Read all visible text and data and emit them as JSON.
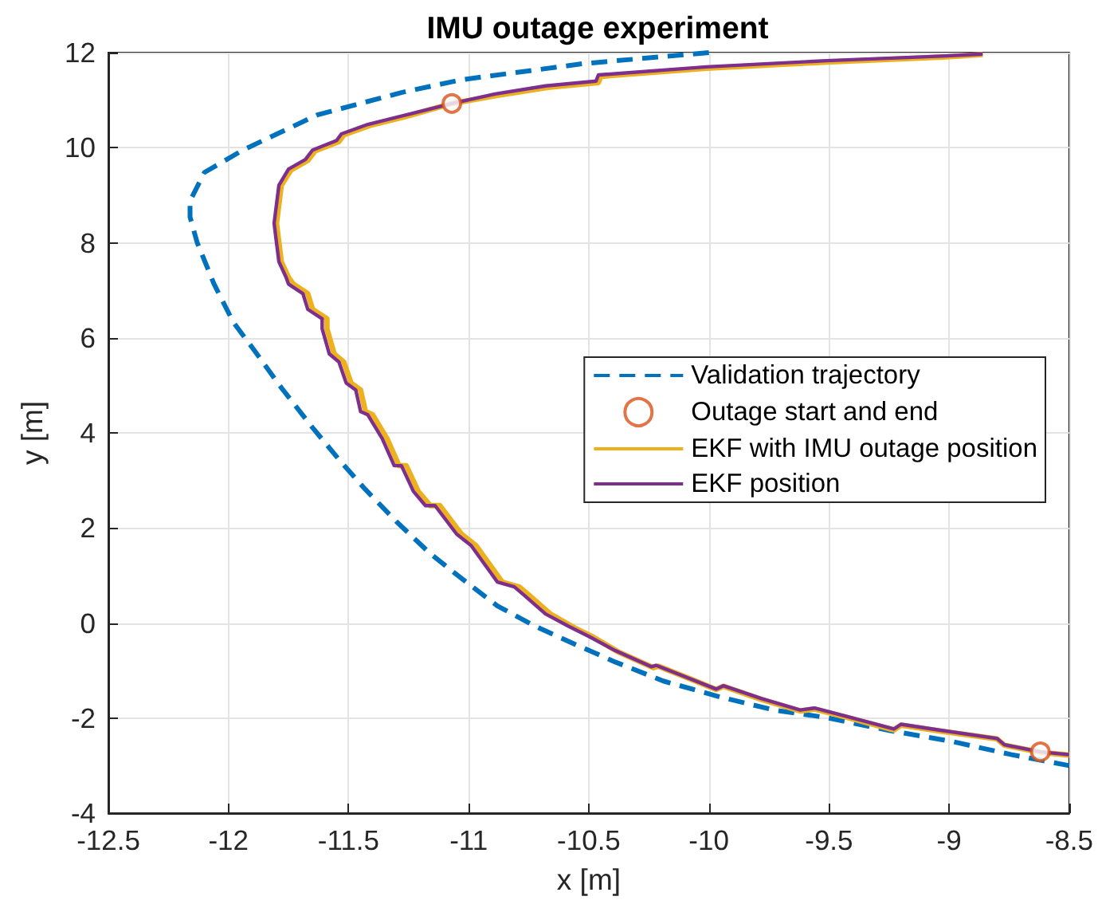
{
  "chart_data": {
    "type": "line",
    "title": "IMU outage experiment",
    "xlabel": "x [m]",
    "ylabel": "y [m]",
    "xlim": [
      -12.5,
      -8.5
    ],
    "xticks": [
      -12.5,
      -12,
      -11.5,
      -11,
      -10.5,
      -10,
      -9.5,
      -9,
      -8.5
    ],
    "ylim": [
      -4,
      12
    ],
    "yticks": [
      -4,
      -2,
      0,
      2,
      4,
      6,
      8,
      10,
      12
    ],
    "grid": true,
    "legend": "right",
    "series": [
      {
        "name": "Validation trajectory",
        "color": "#0072bd",
        "line_style": "dashed",
        "x": [
          -10.0,
          -10.52,
          -11.03,
          -11.28,
          -11.63,
          -11.94,
          -12.1,
          -12.16,
          -12.16,
          -12.13,
          -12.06,
          -11.98,
          -11.89,
          -11.78,
          -11.65,
          -11.54,
          -11.43,
          -11.3,
          -11.16,
          -11.01,
          -10.88,
          -10.73,
          -10.57,
          -10.39,
          -10.19,
          -9.95,
          -9.73,
          -9.51,
          -9.25,
          -8.98,
          -8.74,
          -8.5
        ],
        "values": [
          12.0,
          11.77,
          11.43,
          11.16,
          10.69,
          9.95,
          9.48,
          8.88,
          8.54,
          8.0,
          7.13,
          6.33,
          5.72,
          4.95,
          4.11,
          3.44,
          2.81,
          2.13,
          1.46,
          0.86,
          0.36,
          -0.05,
          -0.42,
          -0.82,
          -1.22,
          -1.56,
          -1.83,
          -1.99,
          -2.26,
          -2.5,
          -2.77,
          -3.0
        ]
      },
      {
        "name": "Outage start and end",
        "type": "scatter",
        "marker": "circle",
        "color": "#d95319",
        "x": [
          -11.07,
          -8.62
        ],
        "values": [
          10.93,
          -2.71
        ]
      },
      {
        "name": "EKF with IMU outage position",
        "color": "#edb120",
        "x": [
          -8.86,
          -9.01,
          -9.51,
          -10.01,
          -10.45,
          -10.46,
          -10.67,
          -10.88,
          -11.07,
          -11.25,
          -11.41,
          -11.52,
          -11.54,
          -11.64,
          -11.67,
          -11.74,
          -11.78,
          -11.79,
          -11.8,
          -11.79,
          -11.78,
          -11.75,
          -11.73,
          -11.67,
          -11.65,
          -11.59,
          -11.59,
          -11.56,
          -11.52,
          -11.49,
          -11.45,
          -11.43,
          -11.4,
          -11.34,
          -11.29,
          -11.26,
          -11.21,
          -11.16,
          -11.12,
          -11.03,
          -10.97,
          -10.86,
          -10.79,
          -10.75,
          -10.66,
          -10.56,
          -10.48,
          -10.38,
          -10.23,
          -10.21,
          -10.08,
          -9.97,
          -9.94,
          -9.78,
          -9.62,
          -9.56,
          -9.43,
          -9.23,
          -9.2,
          -9.03,
          -8.8,
          -8.77,
          -8.62,
          -8.5
        ],
        "values": [
          11.96,
          11.91,
          11.8,
          11.67,
          11.5,
          11.37,
          11.27,
          11.1,
          10.93,
          10.67,
          10.47,
          10.27,
          10.13,
          9.93,
          9.73,
          9.53,
          9.21,
          8.81,
          8.41,
          8.0,
          7.6,
          7.27,
          7.13,
          6.93,
          6.6,
          6.4,
          6.19,
          5.66,
          5.49,
          5.05,
          4.9,
          4.45,
          4.38,
          3.88,
          3.31,
          3.31,
          2.77,
          2.47,
          2.47,
          1.87,
          1.63,
          0.86,
          0.76,
          0.59,
          0.19,
          -0.1,
          -0.3,
          -0.6,
          -0.94,
          -0.91,
          -1.17,
          -1.4,
          -1.33,
          -1.61,
          -1.85,
          -1.81,
          -1.98,
          -2.25,
          -2.15,
          -2.28,
          -2.44,
          -2.57,
          -2.72,
          -2.78
        ]
      },
      {
        "name": "EKF position",
        "color": "#7e2f8e",
        "x": [
          -8.86,
          -9.01,
          -9.51,
          -10.01,
          -10.46,
          -10.47,
          -10.68,
          -10.89,
          -11.07,
          -11.26,
          -11.42,
          -11.53,
          -11.55,
          -11.65,
          -11.68,
          -11.75,
          -11.79,
          -11.8,
          -11.81,
          -11.8,
          -11.79,
          -11.76,
          -11.75,
          -11.69,
          -11.67,
          -11.61,
          -11.61,
          -11.58,
          -11.54,
          -11.51,
          -11.47,
          -11.45,
          -11.42,
          -11.36,
          -11.31,
          -11.28,
          -11.23,
          -11.18,
          -11.14,
          -11.05,
          -10.99,
          -10.88,
          -10.81,
          -10.77,
          -10.68,
          -10.58,
          -10.5,
          -10.39,
          -10.24,
          -10.22,
          -10.09,
          -9.97,
          -9.94,
          -9.78,
          -9.62,
          -9.56,
          -9.43,
          -9.23,
          -9.2,
          -9.03,
          -8.8,
          -8.77,
          -8.62,
          -8.5
        ],
        "values": [
          11.97,
          11.93,
          11.83,
          11.7,
          11.53,
          11.4,
          11.3,
          11.13,
          10.93,
          10.69,
          10.49,
          10.29,
          10.15,
          9.95,
          9.75,
          9.55,
          9.21,
          8.81,
          8.41,
          8.0,
          7.6,
          7.27,
          7.13,
          6.93,
          6.6,
          6.4,
          6.19,
          5.66,
          5.49,
          5.05,
          4.9,
          4.45,
          4.38,
          3.88,
          3.31,
          3.31,
          2.77,
          2.47,
          2.47,
          1.87,
          1.63,
          0.86,
          0.76,
          0.59,
          0.19,
          -0.08,
          -0.28,
          -0.58,
          -0.92,
          -0.89,
          -1.15,
          -1.39,
          -1.32,
          -1.59,
          -1.83,
          -1.79,
          -1.96,
          -2.23,
          -2.13,
          -2.26,
          -2.43,
          -2.56,
          -2.71,
          -2.77
        ]
      }
    ]
  }
}
